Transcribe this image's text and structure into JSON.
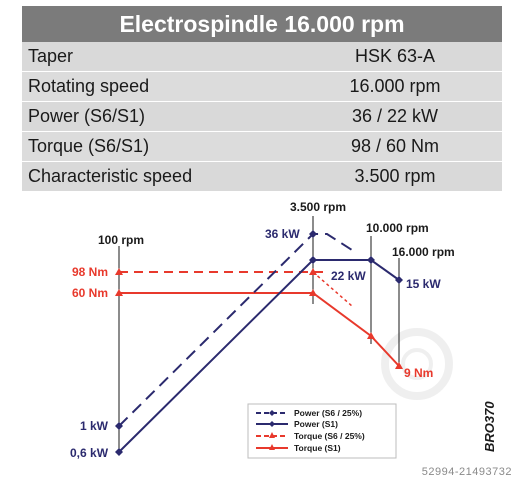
{
  "title": "Electrospindle 16.000 rpm",
  "specs": [
    {
      "label": "Taper",
      "value": "HSK 63-A"
    },
    {
      "label": "Rotating speed",
      "value": "16.000 rpm"
    },
    {
      "label": "Power (S6/S1)",
      "value": "36 / 22 kW"
    },
    {
      "label": "Torque (S6/S1)",
      "value": "98 / 60 Nm"
    },
    {
      "label": "Characteristic speed",
      "value": "3.500 rpm"
    }
  ],
  "watermark": "52994-21493732",
  "code": "BRO370",
  "colors": {
    "header_bg": "#7b7b7b",
    "row_bg": "#d9d9d9",
    "power": "#2b2a6e",
    "torque": "#e8392c"
  },
  "chart_data": {
    "type": "line",
    "x_markers": [
      {
        "label": "100 rpm"
      },
      {
        "label": "3.500 rpm"
      },
      {
        "label": "10.000 rpm"
      },
      {
        "label": "16.000 rpm"
      }
    ],
    "x": [
      100,
      3500,
      10000,
      16000
    ],
    "series": [
      {
        "name": "Power (S6 / 25%)",
        "kind": "power",
        "style": "dashed",
        "values": [
          1,
          36,
          null,
          null
        ]
      },
      {
        "name": "Power (S1)",
        "kind": "power",
        "style": "solid",
        "values": [
          0.6,
          22,
          22,
          15
        ]
      },
      {
        "name": "Torque (S6 / 25%)",
        "kind": "torque",
        "style": "dashed",
        "values": [
          98,
          98,
          null,
          null
        ]
      },
      {
        "name": "Torque (S1)",
        "kind": "torque",
        "style": "solid",
        "values": [
          60,
          60,
          null,
          9
        ]
      }
    ],
    "annotations": [
      "36 kW",
      "22 kW",
      "15 kW",
      "1 kW",
      "0,6 kW",
      "98 Nm",
      "60 Nm",
      "9 Nm"
    ],
    "legend_position": "bottom-right"
  }
}
